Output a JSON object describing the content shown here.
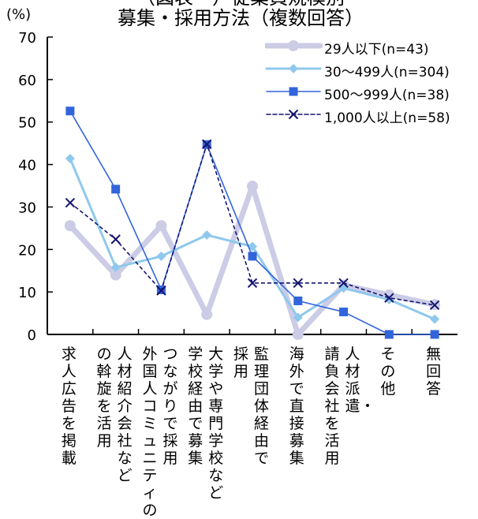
{
  "chart_data": {
    "type": "line",
    "title_line1": "（図表　）従業員規模別",
    "title_line2": "募集・採用方法（複数回答）",
    "ylabel": "(%)",
    "ylim": [
      0,
      70
    ],
    "yticks": [
      0,
      10,
      20,
      30,
      40,
      50,
      60,
      70
    ],
    "grid": false,
    "legend_position": "top-right",
    "categories": [
      [
        "求人広告を掲載"
      ],
      [
        "人材紹介会社など",
        "の斡旋を活用"
      ],
      [
        "つながりで採用",
        "外国人コミュニティの"
      ],
      [
        "大学や専門学校など",
        "学校経由で募集"
      ],
      [
        "監理団体経由で",
        "採用"
      ],
      [
        "海外で直接募集"
      ],
      [
        "人材派遣・",
        "請負会社を活用"
      ],
      [
        "その他"
      ],
      [
        "無回答"
      ]
    ],
    "series": [
      {
        "name": "29人以下(n=43)",
        "color": "#cccce6",
        "marker": "circle",
        "values": [
          25.6,
          14.0,
          25.6,
          4.7,
          34.9,
          0.0,
          11.6,
          9.3,
          7.0
        ]
      },
      {
        "name": "30～499人(n=304)",
        "color": "#8fc8ec",
        "marker": "diamond",
        "values": [
          41.4,
          15.8,
          18.4,
          23.4,
          20.7,
          4.0,
          10.9,
          8.2,
          3.6
        ]
      },
      {
        "name": "500～999人(n=38)",
        "color": "#3264dc",
        "marker": "square",
        "values": [
          52.6,
          34.2,
          10.5,
          44.7,
          18.4,
          7.9,
          5.3,
          0.0,
          0.0
        ]
      },
      {
        "name": "1,000人以上(n=58)",
        "color": "#14146e",
        "marker": "x",
        "values": [
          31.0,
          22.4,
          10.3,
          44.8,
          12.1,
          12.1,
          12.1,
          8.6,
          6.9
        ]
      }
    ]
  }
}
